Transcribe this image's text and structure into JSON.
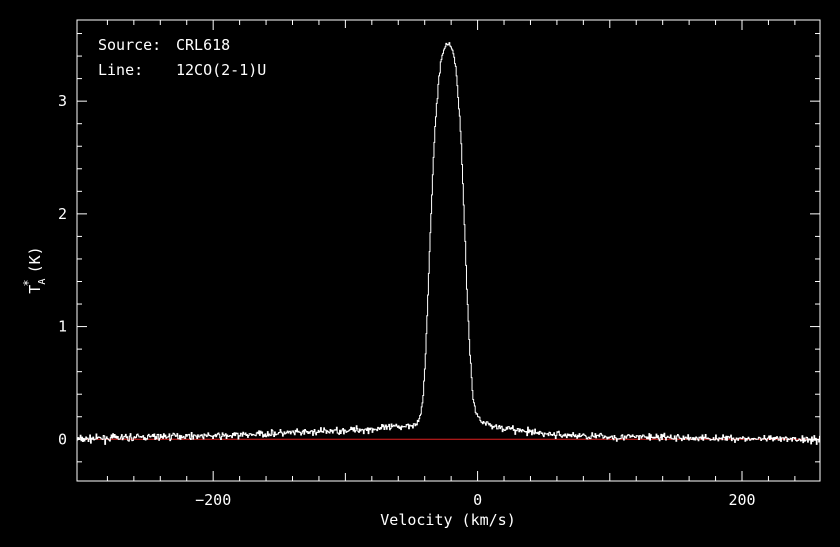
{
  "chart_data": {
    "type": "line",
    "title": "",
    "annotations": {
      "source_label": "Source:",
      "source_value": "CRL618",
      "line_label": "Line:",
      "line_value": "12CO(2-1)U"
    },
    "xlabel": "Velocity (km/s)",
    "ylabel": {
      "symbol": "T",
      "superscript": "*",
      "subscript": "A",
      "unit": "(K)"
    },
    "xlim": [
      -303,
      259
    ],
    "ylim": [
      -0.37,
      3.72
    ],
    "x_ticks": [
      {
        "value": -200,
        "label": "−200"
      },
      {
        "value": 0,
        "label": "0"
      },
      {
        "value": 200,
        "label": "200"
      }
    ],
    "y_ticks": [
      {
        "value": 0,
        "label": "0"
      },
      {
        "value": 1,
        "label": "1"
      },
      {
        "value": 2,
        "label": "2"
      },
      {
        "value": 3,
        "label": "3"
      }
    ],
    "baseline": {
      "value": 0,
      "color": "#e02020"
    },
    "series": [
      {
        "color": "#ffffff",
        "x": [
          -303,
          -280,
          -250,
          -220,
          -190,
          -160,
          -130,
          -100,
          -80,
          -60,
          -50,
          -45,
          -42,
          -40,
          -38,
          -36,
          -34,
          -32,
          -30,
          -28,
          -26,
          -24,
          -22,
          -20,
          -18,
          -16,
          -14,
          -12,
          -10,
          -8,
          -6,
          -4,
          -2,
          0,
          5,
          10,
          20,
          30,
          40,
          60,
          80,
          100,
          130,
          160,
          190,
          220,
          259
        ],
        "y": [
          0.0,
          0.01,
          0.02,
          0.03,
          0.03,
          0.05,
          0.06,
          0.08,
          0.09,
          0.11,
          0.13,
          0.15,
          0.3,
          0.65,
          1.2,
          1.85,
          2.4,
          2.85,
          3.15,
          3.35,
          3.45,
          3.5,
          3.52,
          3.48,
          3.4,
          3.2,
          2.9,
          2.45,
          1.85,
          1.25,
          0.75,
          0.4,
          0.25,
          0.2,
          0.15,
          0.12,
          0.1,
          0.08,
          0.06,
          0.04,
          0.03,
          0.02,
          0.02,
          0.01,
          0.01,
          0.0,
          0.0
        ],
        "noise_rms": 0.03
      }
    ],
    "grid": false,
    "legend": "none"
  }
}
